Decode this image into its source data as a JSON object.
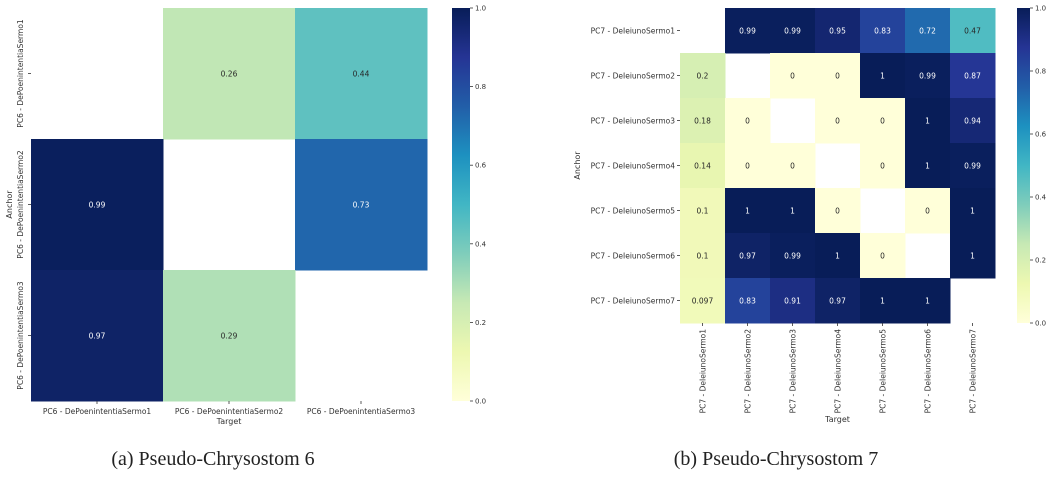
{
  "chart_data": [
    {
      "type": "heatmap",
      "caption": "(a) Pseudo-Chrysostom 6",
      "xlabel": "Target",
      "ylabel": "Anchor",
      "x_categories": [
        "PC6 - DePoenintentiaSermo1",
        "PC6 - DePoenintentiaSermo2",
        "PC6 - DePoenintentiaSermo3"
      ],
      "y_categories": [
        "PC6 - DePoenintentiaSermo1",
        "PC6 - DePoenintentiaSermo2",
        "PC6 - DePoenintentiaSermo3"
      ],
      "values": [
        [
          null,
          0.26,
          0.44
        ],
        [
          0.99,
          null,
          0.73
        ],
        [
          0.97,
          0.29,
          null
        ]
      ],
      "value_labels": [
        [
          null,
          "0.26",
          "0.44"
        ],
        [
          "0.99",
          null,
          "0.73"
        ],
        [
          "0.97",
          "0.29",
          null
        ]
      ],
      "colormap": "YlGnBu",
      "vmin": 0.0,
      "vmax": 1.0,
      "colorbar_ticks": [
        "0.0",
        "0.2",
        "0.4",
        "0.6",
        "0.8",
        "1.0"
      ]
    },
    {
      "type": "heatmap",
      "caption": "(b) Pseudo-Chrysostom 7",
      "xlabel": "Target",
      "ylabel": "Anchor",
      "x_categories": [
        "PC7 - DeIeiunoSermo1",
        "PC7 - DeIeiunoSermo2",
        "PC7 - DeIeiunoSermo3",
        "PC7 - DeIeiunoSermo4",
        "PC7 - DeIeiunoSermo5",
        "PC7 - DeIeiunoSermo6",
        "PC7 - DeIeiunoSermo7"
      ],
      "y_categories": [
        "PC7 - DeIeiunoSermo1",
        "PC7 - DeIeiunoSermo2",
        "PC7 - DeIeiunoSermo3",
        "PC7 - DeIeiunoSermo4",
        "PC7 - DeIeiunoSermo5",
        "PC7 - DeIeiunoSermo6",
        "PC7 - DeIeiunoSermo7"
      ],
      "values": [
        [
          null,
          0.99,
          0.99,
          0.95,
          0.83,
          0.72,
          0.47
        ],
        [
          0.2,
          null,
          0,
          0,
          1,
          0.99,
          0.87
        ],
        [
          0.18,
          0,
          null,
          0,
          0,
          1,
          0.94
        ],
        [
          0.14,
          0,
          0,
          null,
          0,
          1,
          0.99
        ],
        [
          0.1,
          1,
          1,
          0,
          null,
          0,
          1
        ],
        [
          0.1,
          0.97,
          0.99,
          1,
          0,
          null,
          1
        ],
        [
          0.097,
          0.83,
          0.91,
          0.97,
          1,
          1,
          null
        ]
      ],
      "value_labels": [
        [
          null,
          "0.99",
          "0.99",
          "0.95",
          "0.83",
          "0.72",
          "0.47"
        ],
        [
          "0.2",
          null,
          "0",
          "0",
          "1",
          "0.99",
          "0.87"
        ],
        [
          "0.18",
          "0",
          null,
          "0",
          "0",
          "1",
          "0.94"
        ],
        [
          "0.14",
          "0",
          "0",
          null,
          "0",
          "1",
          "0.99"
        ],
        [
          "0.1",
          "1",
          "1",
          "0",
          null,
          "0",
          "1"
        ],
        [
          "0.1",
          "0.97",
          "0.99",
          "1",
          "0",
          null,
          "1"
        ],
        [
          "0.097",
          "0.83",
          "0.91",
          "0.97",
          "1",
          "1",
          null
        ]
      ],
      "colormap": "YlGnBu",
      "vmin": 0.0,
      "vmax": 1.0,
      "colorbar_ticks": [
        "0.0",
        "0.2",
        "0.4",
        "0.6",
        "0.8",
        "1.0"
      ]
    }
  ]
}
